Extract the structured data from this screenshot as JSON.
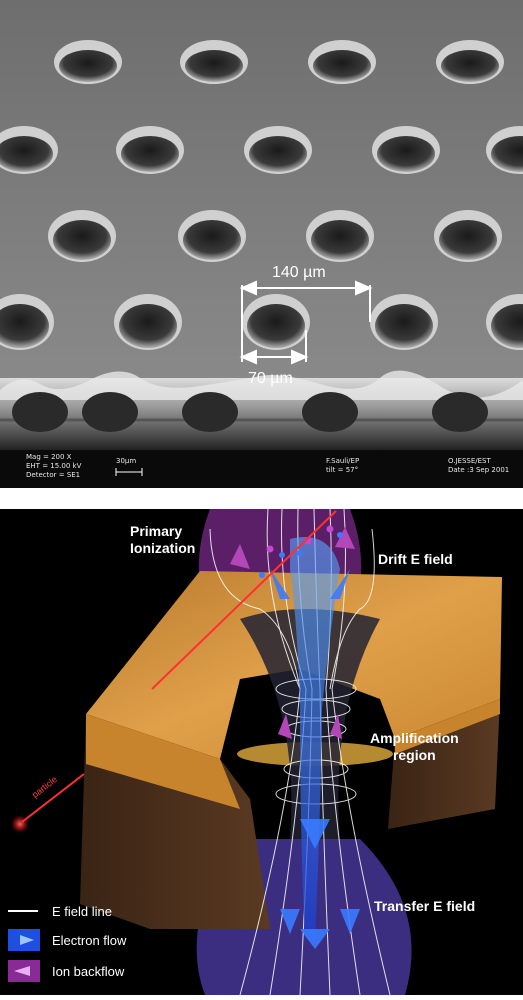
{
  "sem_image": {
    "dimension_pitch": "140 µm",
    "dimension_hole": "70 µm",
    "info_bar": {
      "mag": "Mag =   200 X",
      "eht": "EHT = 15.00 kV",
      "detector": "Detector = SE1",
      "scale": "30µm",
      "operator": "F.Sauli/EP",
      "tilt": "tilt = 57°",
      "author": "O.JESSE/EST",
      "date": "Date :3 Sep 2001"
    }
  },
  "diagram": {
    "labels": {
      "primary_ionization": "Primary\nIonization",
      "drift": "Drift E field",
      "amplification": "Amplification\nregion",
      "transfer": "Transfer E field",
      "particle": "particle"
    },
    "legend": [
      {
        "icon": "white-line-icon",
        "label": "E field line"
      },
      {
        "icon": "blue-arrow-icon",
        "label": "Electron flow"
      },
      {
        "icon": "purple-arrow-icon",
        "label": "Ion backflow"
      }
    ]
  },
  "colors": {
    "copper": "#c9893a",
    "electron": "#2e6cf5",
    "ion": "#a23ca8",
    "particle": "#ff2a2a",
    "sem_gray": "#8a8a8a"
  }
}
